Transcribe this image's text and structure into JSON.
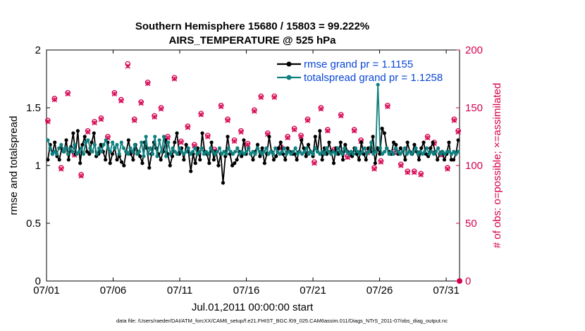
{
  "chart_data": {
    "type": "line",
    "title_line1": "Southern Hemisphere 15680 / 15803 = 99.222%",
    "title_line2": "AIRS_TEMPERATURE @ 525 hPa",
    "xlabel": "Jul.01,2011 00:00:00 start",
    "ylabel_left": "rmse and totalspread",
    "ylabel_right": "# of obs: o=possible; ×=assimilated",
    "x_ticks": [
      "07/01",
      "07/06",
      "07/11",
      "07/16",
      "07/21",
      "07/26",
      "07/31"
    ],
    "x_tick_days": [
      0,
      5,
      10,
      15,
      20,
      25,
      30
    ],
    "xlim": [
      0,
      31
    ],
    "ylim_left": [
      0,
      2
    ],
    "ylim_right": [
      0,
      200
    ],
    "y_ticks_left": [
      "0",
      "0.5",
      "1",
      "1.5",
      "2"
    ],
    "y_ticks_right": [
      "0",
      "50",
      "100",
      "150",
      "200"
    ],
    "colors": {
      "rmse": "#000000",
      "spread": "#0f7f7f",
      "obs": "#d6004f",
      "legend_text": "#0a46d8"
    },
    "series": [
      {
        "name": "rmse grand pr = 1.1155",
        "axis": "left",
        "values": [
          1.05,
          1.18,
          1.1,
          1.2,
          1.08,
          1.05,
          1.15,
          1.12,
          1.22,
          1.05,
          1.16,
          1.28,
          1.1,
          1.3,
          1.02,
          1.18,
          1.25,
          1.12,
          1.1,
          1.2,
          1.28,
          1.08,
          1.1,
          1.18,
          1.12,
          1.05,
          1.2,
          1.02,
          1.1,
          1.15,
          1.05,
          1.08,
          1.03,
          1.0,
          1.12,
          1.22,
          1.1,
          1.05,
          1.18,
          1.12,
          1.08,
          1.02,
          1.2,
          1.15,
          0.98,
          1.1,
          1.2,
          1.15,
          1.1,
          1.05,
          1.12,
          1.22,
          1.1,
          1.0,
          1.08,
          1.2,
          1.28,
          1.1,
          1.15,
          1.05,
          1.18,
          1.12,
          0.95,
          1.1,
          1.02,
          1.15,
          1.05,
          1.28,
          1.12,
          1.1,
          1.02,
          1.2,
          1.05,
          1.12,
          1.0,
          1.1,
          0.85,
          1.08,
          1.25,
          1.1,
          1.0,
          1.02,
          1.05,
          1.12,
          1.08,
          1.22,
          1.1,
          1.15,
          1.1,
          1.05,
          1.12,
          1.18,
          1.08,
          1.15,
          1.02,
          1.1,
          1.25,
          1.12,
          1.05,
          1.08,
          1.15,
          1.2,
          1.1,
          1.05,
          1.15,
          1.12,
          1.1,
          1.1,
          1.05,
          1.12,
          1.22,
          1.15,
          1.08,
          1.18,
          1.12,
          1.08,
          1.25,
          1.12,
          1.3,
          1.05,
          1.15,
          1.1,
          1.2,
          1.12,
          1.02,
          1.15,
          1.1,
          1.2,
          1.05,
          1.18,
          1.12,
          1.1,
          1.08,
          1.15,
          1.1,
          1.05,
          1.2,
          1.1,
          1.05,
          1.15,
          1.12,
          1.25,
          1.02,
          1.15,
          1.1,
          1.32,
          1.28,
          1.15,
          1.12,
          1.1,
          1.2,
          1.18,
          1.1,
          1.15,
          1.12,
          1.05,
          1.2,
          1.12,
          1.1,
          1.18,
          1.12,
          1.05,
          1.15,
          1.2,
          1.1,
          1.08,
          1.15,
          1.2,
          1.12,
          1.05,
          1.1,
          1.12,
          1.05,
          1.1,
          1.2,
          1.05,
          1.05,
          1.1,
          1.22
        ]
      },
      {
        "name": "totalspread grand pr = 1.1258",
        "axis": "left",
        "values": [
          1.22,
          1.15,
          1.1,
          1.12,
          1.1,
          1.15,
          1.18,
          1.12,
          1.15,
          1.1,
          1.15,
          1.12,
          1.18,
          1.1,
          1.12,
          1.15,
          1.1,
          1.2,
          1.22,
          1.15,
          1.12,
          1.18,
          1.1,
          1.15,
          1.12,
          1.18,
          1.22,
          1.15,
          1.12,
          1.2,
          1.15,
          1.18,
          1.1,
          1.2,
          1.15,
          1.12,
          1.1,
          1.15,
          1.12,
          1.18,
          1.1,
          1.12,
          1.2,
          1.08,
          1.25,
          1.1,
          1.15,
          1.1,
          1.25,
          1.08,
          1.22,
          1.12,
          1.25,
          1.08,
          1.2,
          1.1,
          1.15,
          1.12,
          1.1,
          1.15,
          1.12,
          1.1,
          1.12,
          1.15,
          1.1,
          1.12,
          1.15,
          1.1,
          1.12,
          1.15,
          1.1,
          1.12,
          1.1,
          1.15,
          1.12,
          1.1,
          1.12,
          1.15,
          1.1,
          1.12,
          1.1,
          1.15,
          1.12,
          1.1,
          1.12,
          1.15,
          1.1,
          1.12,
          1.1,
          1.12,
          1.15,
          1.1,
          1.12,
          1.1,
          1.15,
          1.12,
          1.1,
          1.12,
          1.15,
          1.1,
          1.12,
          1.1,
          1.15,
          1.12,
          1.1,
          1.12,
          1.15,
          1.1,
          1.12,
          1.1,
          1.12,
          1.15,
          1.1,
          1.12,
          1.1,
          1.12,
          1.15,
          1.1,
          1.12,
          1.1,
          1.15,
          1.12,
          1.1,
          1.12,
          1.1,
          1.15,
          1.12,
          1.1,
          1.12,
          1.1,
          1.15,
          1.12,
          1.1,
          1.15,
          1.12,
          1.1,
          1.12,
          1.1,
          1.15,
          1.12,
          1.1,
          1.12,
          1.15,
          1.1,
          1.12,
          1.2,
          1.1,
          1.12,
          1.7,
          1.15,
          1.1,
          1.12,
          1.15,
          1.1,
          1.12,
          1.1,
          1.15,
          1.12,
          1.1,
          1.12,
          1.15,
          1.1,
          1.12,
          1.1,
          1.12,
          1.15,
          1.1,
          1.12,
          1.1,
          1.12,
          1.15,
          1.1,
          1.12,
          1.1,
          1.12,
          1.15,
          1.1,
          1.12,
          1.1,
          1.12,
          1.12,
          1.1,
          1.12,
          1.1,
          1.12
        ]
      },
      {
        "name": "possible",
        "axis": "right",
        "x": [
          0.1,
          0.6,
          1.1,
          1.6,
          2.1,
          2.6,
          3.1,
          3.6,
          4.1,
          4.6,
          5.1,
          5.6,
          6.1,
          6.6,
          7.1,
          7.6,
          8.1,
          8.6,
          9.1,
          9.6,
          10.1,
          10.6,
          11.1,
          11.6,
          12.1,
          12.6,
          13.1,
          13.6,
          14.1,
          14.6,
          15.1,
          15.6,
          16.1,
          16.6,
          17.1,
          17.6,
          18.1,
          18.6,
          19.1,
          19.6,
          20.1,
          20.6,
          21.1,
          21.6,
          22.1,
          22.6,
          23.1,
          23.6,
          24.1,
          24.6,
          25.1,
          25.6,
          26.1,
          26.6,
          27.1,
          27.6,
          28.1,
          28.6,
          29.1,
          29.6,
          30.1,
          30.6,
          30.9
        ],
        "values": [
          139,
          158,
          98,
          163,
          110,
          92,
          130,
          138,
          141,
          125,
          163,
          157,
          188,
          140,
          155,
          172,
          143,
          150,
          125,
          176,
          121,
          134,
          118,
          145,
          126,
          114,
          152,
          140,
          122,
          130,
          119,
          148,
          160,
          128,
          160,
          116,
          125,
          132,
          126,
          140,
          103,
          150,
          131,
          114,
          144,
          108,
          131,
          122,
          112,
          98,
          104,
          152,
          112,
          101,
          95,
          95,
          93,
          125,
          120,
          110,
          98,
          140,
          130
        ]
      },
      {
        "name": "assimilated",
        "axis": "right",
        "x": [
          0.1,
          0.6,
          1.1,
          1.6,
          2.1,
          2.6,
          3.1,
          3.6,
          4.1,
          4.6,
          5.1,
          5.6,
          6.1,
          6.6,
          7.1,
          7.6,
          8.1,
          8.6,
          9.1,
          9.6,
          10.1,
          10.6,
          11.1,
          11.6,
          12.1,
          12.6,
          13.1,
          13.6,
          14.1,
          14.6,
          15.1,
          15.6,
          16.1,
          16.6,
          17.1,
          17.6,
          18.1,
          18.6,
          19.1,
          19.6,
          20.1,
          20.6,
          21.1,
          21.6,
          22.1,
          22.6,
          23.1,
          23.6,
          24.1,
          24.6,
          25.1,
          25.6,
          26.1,
          26.6,
          27.1,
          27.6,
          28.1,
          28.6,
          29.1,
          29.6,
          30.1,
          30.6,
          30.9
        ],
        "values": [
          138,
          157,
          97,
          162,
          109,
          91,
          129,
          137,
          140,
          124,
          162,
          156,
          186,
          139,
          154,
          171,
          142,
          149,
          124,
          175,
          120,
          133,
          117,
          144,
          125,
          113,
          151,
          139,
          121,
          129,
          118,
          147,
          159,
          127,
          159,
          115,
          124,
          131,
          125,
          139,
          102,
          149,
          130,
          113,
          143,
          107,
          130,
          121,
          111,
          97,
          103,
          151,
          111,
          100,
          94,
          94,
          92,
          124,
          119,
          109,
          97,
          139,
          129
        ]
      }
    ],
    "end_marker_value": 0
  },
  "footnote": "data file: /Users/raeder/DAI/ATM_forcXX/CAM6_setup/f.e21.FHIST_BGC.f09_025.CAM6assim.011/Diags_NTrS_2011-07/obs_diag_output.nc"
}
